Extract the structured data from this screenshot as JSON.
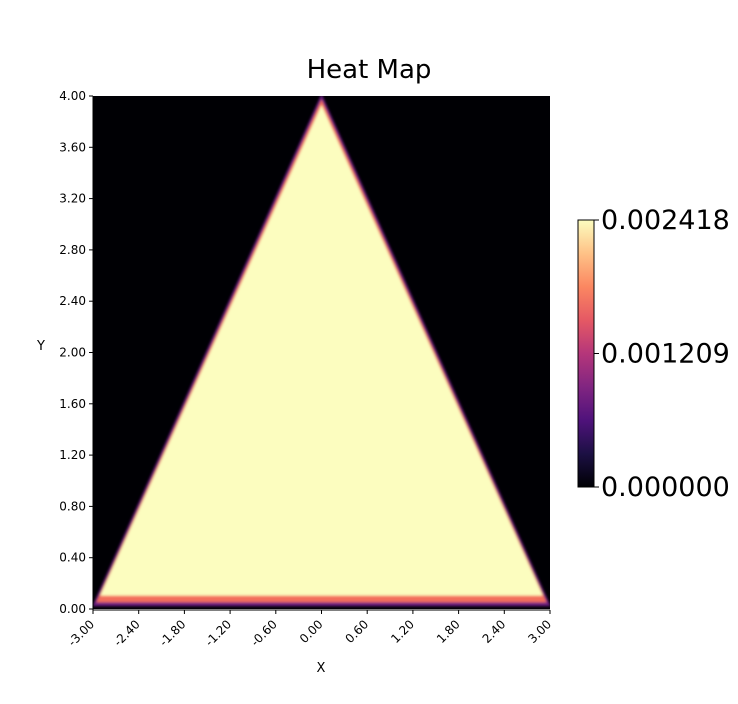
{
  "chart_data": {
    "type": "heatmap",
    "title": "Heat Map",
    "xlabel": "X",
    "ylabel": "Y",
    "xlim": [
      -3.0,
      3.0
    ],
    "ylim": [
      0.0,
      4.0
    ],
    "x_ticks": [
      "-3.00",
      "-2.40",
      "-1.80",
      "-1.20",
      "-0.60",
      "0.00",
      "0.60",
      "1.20",
      "1.80",
      "2.40",
      "3.00"
    ],
    "y_ticks": [
      "0.00",
      "0.40",
      "0.80",
      "1.20",
      "1.60",
      "2.00",
      "2.40",
      "2.80",
      "3.20",
      "3.60",
      "4.00"
    ],
    "colormap": "magma",
    "colorbar": {
      "min": 0.0,
      "max": 0.002418,
      "ticks": [
        "0.000000",
        "0.001209",
        "0.002418"
      ]
    },
    "region": {
      "shape": "triangle",
      "vertices": [
        [
          -3.0,
          0.0
        ],
        [
          3.0,
          0.0
        ],
        [
          0.0,
          4.0
        ]
      ],
      "inside_value": 0.002418,
      "outside_value": 0.0
    },
    "grid": false
  },
  "colors": {
    "inside": "#fcfdbf",
    "outside": "#000004",
    "magma_stops": [
      "#000004",
      "#1c1044",
      "#4f127b",
      "#812581",
      "#b5367a",
      "#e55964",
      "#fb8761",
      "#fec287",
      "#fcfdbf"
    ]
  }
}
